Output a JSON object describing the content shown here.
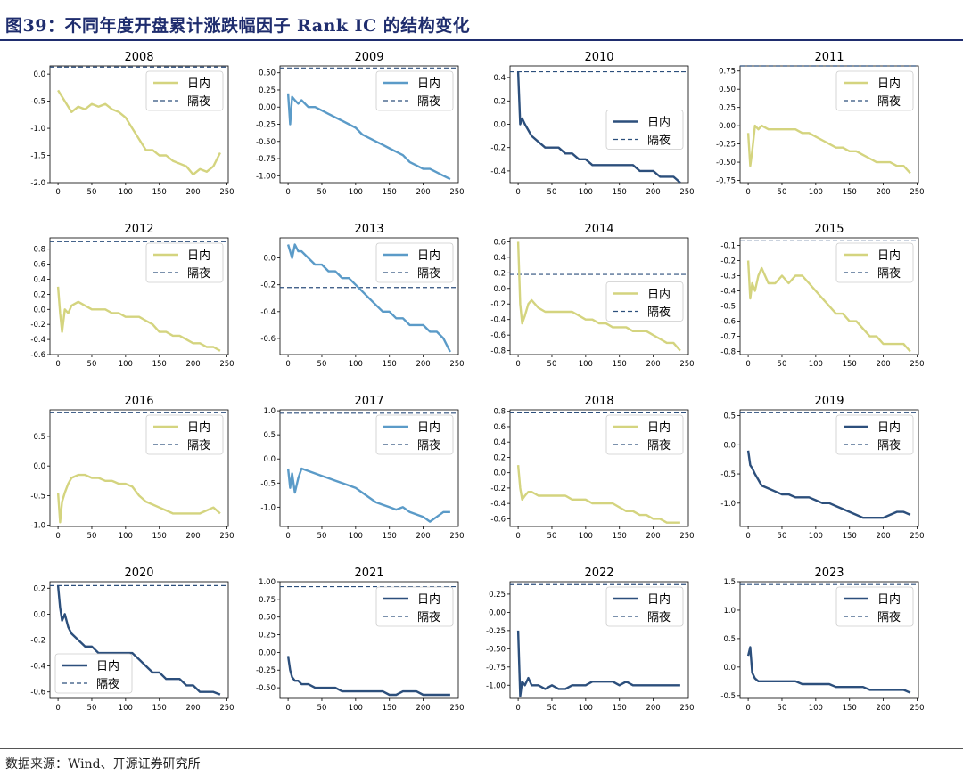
{
  "title": "图39：不同年度开盘累计涨跌幅因子 Rank IC 的结构变化",
  "source": "数据来源：Wind、开源证券研究所",
  "legend_labels": {
    "intraday": "日内",
    "overnight": "隔夜"
  },
  "colors": {
    "yellow": "#d4d47f",
    "blue": "#5b9bc8",
    "navy": "#2c4f7c",
    "dash": "#2c4f7c"
  },
  "chart_data": [
    {
      "type": "line",
      "title": "2008",
      "color": "yellow",
      "legend": "top-right",
      "ylim": [
        -2.0,
        0.15
      ],
      "yticks": [
        0.0,
        -0.5,
        -1.0,
        -1.5,
        -2.0
      ],
      "overnight": 0.13,
      "x": [
        0,
        5,
        10,
        15,
        20,
        30,
        40,
        50,
        60,
        70,
        80,
        90,
        100,
        110,
        120,
        130,
        140,
        150,
        160,
        170,
        180,
        190,
        200,
        210,
        220,
        230,
        240
      ],
      "values": [
        -0.3,
        -0.4,
        -0.5,
        -0.6,
        -0.7,
        -0.6,
        -0.65,
        -0.55,
        -0.6,
        -0.55,
        -0.65,
        -0.7,
        -0.8,
        -1.0,
        -1.2,
        -1.4,
        -1.4,
        -1.5,
        -1.5,
        -1.6,
        -1.65,
        -1.7,
        -1.85,
        -1.75,
        -1.8,
        -1.7,
        -1.45
      ]
    },
    {
      "type": "line",
      "title": "2009",
      "color": "blue",
      "legend": "top-right",
      "ylim": [
        -1.1,
        0.6
      ],
      "yticks": [
        0.5,
        0.25,
        0.0,
        -0.25,
        -0.5,
        -0.75,
        -1.0
      ],
      "overnight": 0.57,
      "x": [
        0,
        3,
        6,
        10,
        15,
        20,
        30,
        40,
        50,
        60,
        70,
        80,
        90,
        100,
        110,
        120,
        130,
        140,
        150,
        160,
        170,
        180,
        190,
        200,
        210,
        220,
        230,
        240
      ],
      "values": [
        0.2,
        -0.25,
        0.15,
        0.1,
        0.05,
        0.1,
        0.0,
        0.0,
        -0.05,
        -0.1,
        -0.15,
        -0.2,
        -0.25,
        -0.3,
        -0.4,
        -0.45,
        -0.5,
        -0.55,
        -0.6,
        -0.65,
        -0.7,
        -0.8,
        -0.85,
        -0.9,
        -0.9,
        -0.95,
        -1.0,
        -1.05
      ]
    },
    {
      "type": "line",
      "title": "2010",
      "color": "navy",
      "legend": "middle-right",
      "ylim": [
        -0.5,
        0.5
      ],
      "yticks": [
        0.4,
        0.2,
        0.0,
        -0.2,
        -0.4
      ],
      "overnight": 0.45,
      "x": [
        0,
        3,
        6,
        10,
        15,
        20,
        30,
        40,
        50,
        60,
        70,
        80,
        90,
        100,
        110,
        120,
        130,
        140,
        150,
        160,
        170,
        180,
        190,
        200,
        210,
        220,
        230,
        240
      ],
      "values": [
        0.45,
        0.0,
        0.05,
        0.0,
        -0.05,
        -0.1,
        -0.15,
        -0.2,
        -0.2,
        -0.2,
        -0.25,
        -0.25,
        -0.3,
        -0.3,
        -0.35,
        -0.35,
        -0.35,
        -0.35,
        -0.35,
        -0.35,
        -0.35,
        -0.4,
        -0.4,
        -0.4,
        -0.45,
        -0.45,
        -0.45,
        -0.5
      ]
    },
    {
      "type": "line",
      "title": "2011",
      "color": "yellow",
      "legend": "top-right",
      "ylim": [
        -0.78,
        0.82
      ],
      "yticks": [
        0.75,
        0.5,
        0.25,
        0.0,
        -0.25,
        -0.5,
        -0.75
      ],
      "overnight": 0.82,
      "x": [
        0,
        3,
        6,
        10,
        15,
        20,
        30,
        40,
        50,
        60,
        70,
        80,
        90,
        100,
        110,
        120,
        130,
        140,
        150,
        160,
        170,
        180,
        190,
        200,
        210,
        220,
        230,
        240
      ],
      "values": [
        -0.1,
        -0.55,
        -0.35,
        0.0,
        -0.05,
        0.0,
        -0.05,
        -0.05,
        -0.05,
        -0.05,
        -0.05,
        -0.1,
        -0.1,
        -0.15,
        -0.2,
        -0.25,
        -0.3,
        -0.3,
        -0.35,
        -0.35,
        -0.4,
        -0.45,
        -0.5,
        -0.5,
        -0.5,
        -0.55,
        -0.55,
        -0.65
      ]
    },
    {
      "type": "line",
      "title": "2012",
      "color": "yellow",
      "legend": "top-right",
      "ylim": [
        -0.6,
        0.95
      ],
      "yticks": [
        0.8,
        0.6,
        0.4,
        0.2,
        0.0,
        -0.2,
        -0.4,
        -0.6
      ],
      "overnight": 0.9,
      "x": [
        0,
        3,
        6,
        10,
        15,
        20,
        30,
        40,
        50,
        60,
        70,
        80,
        90,
        100,
        110,
        120,
        130,
        140,
        150,
        160,
        170,
        180,
        190,
        200,
        210,
        220,
        230,
        240
      ],
      "values": [
        0.3,
        -0.05,
        -0.3,
        0.0,
        -0.05,
        0.05,
        0.1,
        0.05,
        0.0,
        0.0,
        0.0,
        -0.05,
        -0.05,
        -0.1,
        -0.1,
        -0.1,
        -0.15,
        -0.2,
        -0.3,
        -0.3,
        -0.35,
        -0.35,
        -0.4,
        -0.45,
        -0.45,
        -0.5,
        -0.5,
        -0.55
      ]
    },
    {
      "type": "line",
      "title": "2013",
      "color": "blue",
      "legend": "top-right",
      "ylim": [
        -0.72,
        0.15
      ],
      "yticks": [
        0.0,
        -0.2,
        -0.4,
        -0.6
      ],
      "overnight": -0.22,
      "x": [
        0,
        3,
        6,
        10,
        15,
        20,
        30,
        40,
        50,
        60,
        70,
        80,
        90,
        100,
        110,
        120,
        130,
        140,
        150,
        160,
        170,
        180,
        190,
        200,
        210,
        220,
        230,
        240
      ],
      "values": [
        0.1,
        0.05,
        0.0,
        0.1,
        0.05,
        0.05,
        0.0,
        -0.05,
        -0.05,
        -0.1,
        -0.1,
        -0.15,
        -0.15,
        -0.2,
        -0.25,
        -0.3,
        -0.35,
        -0.4,
        -0.4,
        -0.45,
        -0.45,
        -0.5,
        -0.5,
        -0.5,
        -0.55,
        -0.55,
        -0.6,
        -0.7
      ]
    },
    {
      "type": "line",
      "title": "2014",
      "color": "yellow",
      "legend": "middle-right",
      "ylim": [
        -0.85,
        0.65
      ],
      "yticks": [
        0.6,
        0.4,
        0.2,
        0.0,
        -0.2,
        -0.4,
        -0.6,
        -0.8
      ],
      "overnight": 0.18,
      "x": [
        0,
        3,
        6,
        10,
        15,
        20,
        30,
        40,
        50,
        60,
        70,
        80,
        90,
        100,
        110,
        120,
        130,
        140,
        150,
        160,
        170,
        180,
        190,
        200,
        210,
        220,
        230,
        240
      ],
      "values": [
        0.6,
        -0.2,
        -0.45,
        -0.35,
        -0.2,
        -0.15,
        -0.25,
        -0.3,
        -0.3,
        -0.3,
        -0.3,
        -0.3,
        -0.35,
        -0.4,
        -0.4,
        -0.45,
        -0.45,
        -0.5,
        -0.5,
        -0.5,
        -0.55,
        -0.55,
        -0.55,
        -0.6,
        -0.65,
        -0.7,
        -0.7,
        -0.8
      ]
    },
    {
      "type": "line",
      "title": "2015",
      "color": "yellow",
      "legend": "top-right",
      "ylim": [
        -0.82,
        -0.05
      ],
      "yticks": [
        -0.1,
        -0.2,
        -0.3,
        -0.4,
        -0.5,
        -0.6,
        -0.7,
        -0.8
      ],
      "overnight": -0.07,
      "x": [
        0,
        3,
        6,
        10,
        15,
        20,
        30,
        40,
        50,
        60,
        70,
        80,
        90,
        100,
        110,
        120,
        130,
        140,
        150,
        160,
        170,
        180,
        190,
        200,
        210,
        220,
        230,
        240
      ],
      "values": [
        -0.2,
        -0.45,
        -0.35,
        -0.4,
        -0.3,
        -0.25,
        -0.35,
        -0.35,
        -0.3,
        -0.35,
        -0.3,
        -0.3,
        -0.35,
        -0.4,
        -0.45,
        -0.5,
        -0.55,
        -0.55,
        -0.6,
        -0.6,
        -0.65,
        -0.7,
        -0.7,
        -0.75,
        -0.75,
        -0.75,
        -0.75,
        -0.8
      ]
    },
    {
      "type": "line",
      "title": "2016",
      "color": "yellow",
      "legend": "top-right",
      "ylim": [
        -1.02,
        0.95
      ],
      "yticks": [
        0.5,
        0.0,
        -0.5,
        -1.0
      ],
      "overnight": 0.9,
      "x": [
        0,
        3,
        6,
        10,
        15,
        20,
        30,
        40,
        50,
        60,
        70,
        80,
        90,
        100,
        110,
        120,
        130,
        140,
        150,
        160,
        170,
        180,
        190,
        200,
        210,
        220,
        230,
        240
      ],
      "values": [
        -0.45,
        -0.95,
        -0.6,
        -0.45,
        -0.3,
        -0.2,
        -0.15,
        -0.15,
        -0.2,
        -0.2,
        -0.25,
        -0.25,
        -0.3,
        -0.3,
        -0.35,
        -0.5,
        -0.6,
        -0.65,
        -0.7,
        -0.75,
        -0.8,
        -0.8,
        -0.8,
        -0.8,
        -0.8,
        -0.75,
        -0.7,
        -0.8
      ]
    },
    {
      "type": "line",
      "title": "2017",
      "color": "blue",
      "legend": "top-right",
      "ylim": [
        -1.4,
        1.02
      ],
      "yticks": [
        1.0,
        0.5,
        0.0,
        -0.5,
        -1.0
      ],
      "overnight": 0.95,
      "x": [
        0,
        3,
        6,
        10,
        15,
        20,
        30,
        40,
        50,
        60,
        70,
        80,
        90,
        100,
        110,
        120,
        130,
        140,
        150,
        160,
        170,
        180,
        190,
        200,
        210,
        220,
        230,
        240
      ],
      "values": [
        -0.2,
        -0.6,
        -0.3,
        -0.7,
        -0.4,
        -0.2,
        -0.25,
        -0.3,
        -0.35,
        -0.4,
        -0.45,
        -0.5,
        -0.55,
        -0.6,
        -0.7,
        -0.8,
        -0.9,
        -0.95,
        -1.0,
        -1.05,
        -1.0,
        -1.1,
        -1.15,
        -1.2,
        -1.3,
        -1.2,
        -1.1,
        -1.1
      ]
    },
    {
      "type": "line",
      "title": "2018",
      "color": "yellow",
      "legend": "top-right",
      "ylim": [
        -0.7,
        0.82
      ],
      "yticks": [
        0.8,
        0.6,
        0.4,
        0.2,
        0.0,
        -0.2,
        -0.4,
        -0.6
      ],
      "overnight": 0.78,
      "x": [
        0,
        3,
        6,
        10,
        15,
        20,
        30,
        40,
        50,
        60,
        70,
        80,
        90,
        100,
        110,
        120,
        130,
        140,
        150,
        160,
        170,
        180,
        190,
        200,
        210,
        220,
        230,
        240
      ],
      "values": [
        0.1,
        -0.2,
        -0.35,
        -0.3,
        -0.25,
        -0.25,
        -0.3,
        -0.3,
        -0.3,
        -0.3,
        -0.3,
        -0.35,
        -0.35,
        -0.35,
        -0.4,
        -0.4,
        -0.4,
        -0.4,
        -0.45,
        -0.5,
        -0.5,
        -0.55,
        -0.55,
        -0.6,
        -0.6,
        -0.65,
        -0.65,
        -0.65
      ]
    },
    {
      "type": "line",
      "title": "2019",
      "color": "navy",
      "legend": "top-right",
      "ylim": [
        -1.4,
        0.6
      ],
      "yticks": [
        0.5,
        0.0,
        -0.5,
        -1.0
      ],
      "overnight": 0.55,
      "x": [
        0,
        3,
        6,
        10,
        15,
        20,
        30,
        40,
        50,
        60,
        70,
        80,
        90,
        100,
        110,
        120,
        130,
        140,
        150,
        160,
        170,
        180,
        190,
        200,
        210,
        220,
        230,
        240
      ],
      "values": [
        -0.1,
        -0.35,
        -0.4,
        -0.5,
        -0.6,
        -0.7,
        -0.75,
        -0.8,
        -0.85,
        -0.85,
        -0.9,
        -0.9,
        -0.9,
        -0.95,
        -1.0,
        -1.0,
        -1.05,
        -1.1,
        -1.15,
        -1.2,
        -1.25,
        -1.25,
        -1.25,
        -1.25,
        -1.2,
        -1.15,
        -1.15,
        -1.2
      ]
    },
    {
      "type": "line",
      "title": "2020",
      "color": "navy",
      "legend": "bottom-left",
      "ylim": [
        -0.65,
        0.25
      ],
      "yticks": [
        0.2,
        0.0,
        -0.2,
        -0.4,
        -0.6
      ],
      "overnight": 0.22,
      "x": [
        0,
        3,
        6,
        10,
        15,
        20,
        30,
        40,
        50,
        60,
        70,
        80,
        90,
        100,
        110,
        120,
        130,
        140,
        150,
        160,
        170,
        180,
        190,
        200,
        210,
        220,
        230,
        240
      ],
      "values": [
        0.22,
        0.05,
        -0.05,
        0.0,
        -0.1,
        -0.15,
        -0.2,
        -0.25,
        -0.25,
        -0.3,
        -0.3,
        -0.3,
        -0.3,
        -0.3,
        -0.3,
        -0.35,
        -0.4,
        -0.45,
        -0.45,
        -0.5,
        -0.5,
        -0.5,
        -0.55,
        -0.55,
        -0.6,
        -0.6,
        -0.6,
        -0.62
      ]
    },
    {
      "type": "line",
      "title": "2021",
      "color": "navy",
      "legend": "top-right",
      "ylim": [
        -0.65,
        1.0
      ],
      "yticks": [
        1.0,
        0.75,
        0.5,
        0.25,
        0.0,
        -0.25,
        -0.5
      ],
      "overnight": 0.93,
      "x": [
        0,
        3,
        6,
        10,
        15,
        20,
        30,
        40,
        50,
        60,
        70,
        80,
        90,
        100,
        110,
        120,
        130,
        140,
        150,
        160,
        170,
        180,
        190,
        200,
        210,
        220,
        230,
        240
      ],
      "values": [
        -0.05,
        -0.25,
        -0.35,
        -0.4,
        -0.4,
        -0.45,
        -0.45,
        -0.5,
        -0.5,
        -0.5,
        -0.5,
        -0.55,
        -0.55,
        -0.55,
        -0.55,
        -0.55,
        -0.55,
        -0.55,
        -0.6,
        -0.6,
        -0.55,
        -0.55,
        -0.55,
        -0.6,
        -0.6,
        -0.6,
        -0.6,
        -0.6
      ]
    },
    {
      "type": "line",
      "title": "2022",
      "color": "navy",
      "legend": "top-right",
      "ylim": [
        -1.18,
        0.42
      ],
      "yticks": [
        0.25,
        0.0,
        -0.25,
        -0.5,
        -0.75,
        -1.0
      ],
      "overnight": 0.38,
      "x": [
        0,
        3,
        6,
        10,
        15,
        20,
        30,
        40,
        50,
        60,
        70,
        80,
        90,
        100,
        110,
        120,
        130,
        140,
        150,
        160,
        170,
        180,
        190,
        200,
        210,
        220,
        230,
        240
      ],
      "values": [
        -0.25,
        -1.15,
        -0.95,
        -1.0,
        -0.9,
        -1.0,
        -1.0,
        -1.05,
        -1.0,
        -1.05,
        -1.05,
        -1.0,
        -1.0,
        -1.0,
        -0.95,
        -0.95,
        -0.95,
        -0.95,
        -1.0,
        -0.95,
        -1.0,
        -1.0,
        -1.0,
        -1.0,
        -1.0,
        -1.0,
        -1.0,
        -1.0
      ]
    },
    {
      "type": "line",
      "title": "2023",
      "color": "navy",
      "legend": "top-right",
      "ylim": [
        -0.55,
        1.5
      ],
      "yticks": [
        1.5,
        1.0,
        0.5,
        0.0,
        -0.5
      ],
      "overnight": 1.45,
      "x": [
        0,
        3,
        6,
        10,
        15,
        20,
        30,
        40,
        50,
        60,
        70,
        80,
        90,
        100,
        110,
        120,
        130,
        140,
        150,
        160,
        170,
        180,
        190,
        200,
        210,
        220,
        230,
        240
      ],
      "values": [
        0.2,
        0.35,
        -0.1,
        -0.2,
        -0.25,
        -0.25,
        -0.25,
        -0.25,
        -0.25,
        -0.25,
        -0.25,
        -0.3,
        -0.3,
        -0.3,
        -0.3,
        -0.3,
        -0.35,
        -0.35,
        -0.35,
        -0.35,
        -0.35,
        -0.4,
        -0.4,
        -0.4,
        -0.4,
        -0.4,
        -0.4,
        -0.45
      ]
    }
  ]
}
